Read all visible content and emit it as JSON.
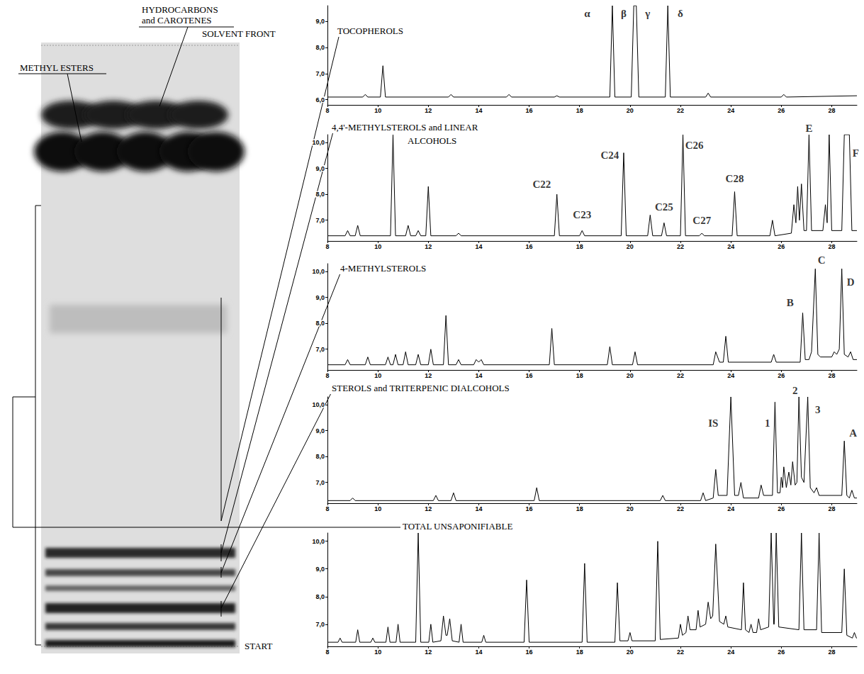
{
  "plate": {
    "methyl_esters": "METHYL ESTERS",
    "hydrocarbons": "HYDROCARBONS and CAROTENES",
    "solvent_front": "SOLVENT FRONT",
    "start": "START"
  },
  "chart_data": [
    {
      "type": "line",
      "title": "TOCOPHEROLS",
      "color": "#000000",
      "grid": false,
      "x": [
        8,
        9.4,
        9.5,
        9.6,
        10.1,
        10.2,
        10.3,
        12.8,
        12.9,
        13.0,
        15.1,
        15.2,
        15.3,
        17.0,
        17.1,
        17.2,
        19.2,
        19.3,
        19.4,
        20.05,
        20.15,
        20.25,
        20.35,
        21.4,
        21.5,
        21.6,
        23.0,
        23.1,
        23.2,
        26.0,
        26.1,
        26.2,
        29
      ],
      "values": [
        6.1,
        6.1,
        6.2,
        6.1,
        6.1,
        7.3,
        6.1,
        6.1,
        6.2,
        6.1,
        6.1,
        6.2,
        6.1,
        6.1,
        6.15,
        6.1,
        6.1,
        9.6,
        6.1,
        6.1,
        9.6,
        9.6,
        6.1,
        6.1,
        9.6,
        6.1,
        6.1,
        6.25,
        6.1,
        6.1,
        6.2,
        6.1,
        6.15
      ],
      "xlim": [
        8,
        29
      ],
      "xticks": [
        8,
        10,
        12,
        14,
        16,
        18,
        20,
        22,
        24,
        26,
        28
      ],
      "ylim": [
        5.8,
        9.6
      ],
      "yticks": [
        {
          "value": 6,
          "label": "6,0"
        },
        {
          "value": 7,
          "label": "7,0"
        },
        {
          "value": 8,
          "label": "8,0"
        },
        {
          "value": 9,
          "label": "9,0"
        }
      ],
      "annotations": [
        {
          "text": "α",
          "x": 18.3,
          "y": 9.3
        },
        {
          "text": "β",
          "x": 19.75,
          "y": 9.3
        },
        {
          "text": "γ",
          "x": 20.7,
          "y": 9.3
        },
        {
          "text": "δ",
          "x": 22.0,
          "y": 9.3
        }
      ]
    },
    {
      "type": "line",
      "title": "4,4'-METHYLSTEROLS and LINEAR ALCOHOLS",
      "color": "#000000",
      "grid": false,
      "x": [
        8,
        8.7,
        8.8,
        8.9,
        9.1,
        9.2,
        9.3,
        10.5,
        10.6,
        10.7,
        11.1,
        11.2,
        11.3,
        11.5,
        11.6,
        11.7,
        11.9,
        12.0,
        12.1,
        13.1,
        13.2,
        13.3,
        17.0,
        17.1,
        17.2,
        18.0,
        18.1,
        18.2,
        19.65,
        19.75,
        19.85,
        20.7,
        20.8,
        20.9,
        21.25,
        21.35,
        21.45,
        22.0,
        22.1,
        22.2,
        22.75,
        22.85,
        22.95,
        24.05,
        24.15,
        24.25,
        25.55,
        25.65,
        25.75,
        26.4,
        26.5,
        26.58,
        26.65,
        26.72,
        26.8,
        26.9,
        27.0,
        27.1,
        27.2,
        27.65,
        27.75,
        27.82,
        27.9,
        28.0,
        28.4,
        28.5,
        28.7,
        28.8,
        29
      ],
      "values": [
        6.4,
        6.4,
        6.6,
        6.4,
        6.4,
        6.8,
        6.4,
        6.4,
        10.3,
        6.4,
        6.4,
        6.8,
        6.4,
        6.4,
        6.6,
        6.4,
        6.4,
        8.3,
        6.4,
        6.4,
        6.5,
        6.4,
        6.4,
        8.0,
        6.4,
        6.4,
        6.6,
        6.4,
        6.4,
        9.6,
        6.4,
        6.4,
        7.2,
        6.4,
        6.4,
        6.9,
        6.4,
        6.4,
        10.3,
        6.4,
        6.4,
        6.5,
        6.4,
        6.4,
        8.1,
        6.4,
        6.4,
        7.0,
        6.4,
        6.5,
        7.6,
        6.9,
        8.3,
        7.0,
        8.4,
        6.6,
        6.6,
        10.3,
        6.6,
        6.6,
        7.6,
        6.9,
        10.3,
        6.6,
        6.6,
        10.3,
        10.3,
        6.6,
        6.6
      ],
      "xlim": [
        8,
        29
      ],
      "xticks": [
        8,
        10,
        12,
        14,
        16,
        18,
        20,
        22,
        24,
        26,
        28
      ],
      "ylim": [
        6.2,
        10.3
      ],
      "yticks": [
        {
          "value": 7,
          "label": "7,0"
        },
        {
          "value": 8,
          "label": "8,0"
        },
        {
          "value": 9,
          "label": "9,0"
        },
        {
          "value": 10,
          "label": "10,0"
        }
      ],
      "annotations": [
        {
          "text": "C22",
          "x": 16.5,
          "y": 8.4
        },
        {
          "text": "C23",
          "x": 18.1,
          "y": 7.2
        },
        {
          "text": "C24",
          "x": 19.2,
          "y": 9.5
        },
        {
          "text": "C25",
          "x": 21.35,
          "y": 7.5
        },
        {
          "text": "C26",
          "x": 22.55,
          "y": 9.9
        },
        {
          "text": "C27",
          "x": 22.85,
          "y": 7.0
        },
        {
          "text": "C28",
          "x": 24.15,
          "y": 8.6
        },
        {
          "text": "E",
          "x": 27.1,
          "y": 10.55
        },
        {
          "text": "F",
          "x": 28.95,
          "y": 9.6
        }
      ]
    },
    {
      "type": "line",
      "title": "4-METHYLSTEROLS",
      "color": "#000000",
      "grid": false,
      "x": [
        8,
        8.7,
        8.8,
        8.9,
        9.5,
        9.6,
        9.7,
        10.3,
        10.4,
        10.5,
        10.6,
        10.7,
        10.8,
        11.0,
        11.1,
        11.2,
        11.5,
        11.6,
        11.7,
        12.0,
        12.1,
        12.2,
        12.6,
        12.7,
        12.8,
        13.1,
        13.2,
        13.3,
        13.8,
        13.9,
        14.0,
        14.1,
        14.2,
        16.8,
        16.9,
        17.0,
        19.1,
        19.2,
        19.3,
        20.1,
        20.2,
        20.3,
        23.3,
        23.4,
        23.55,
        23.7,
        23.8,
        23.9,
        25.6,
        25.7,
        25.8,
        26.75,
        26.85,
        26.95,
        27.1,
        27.2,
        27.35,
        27.45,
        27.55,
        28.0,
        28.1,
        28.2,
        28.3,
        28.4,
        28.5,
        28.65,
        28.75,
        28.85,
        29
      ],
      "values": [
        6.4,
        6.4,
        6.6,
        6.4,
        6.4,
        6.7,
        6.4,
        6.4,
        6.7,
        6.4,
        6.4,
        6.8,
        6.4,
        6.4,
        6.9,
        6.4,
        6.4,
        6.8,
        6.4,
        6.4,
        7.0,
        6.4,
        6.4,
        8.3,
        6.4,
        6.4,
        6.6,
        6.4,
        6.4,
        6.6,
        6.5,
        6.6,
        6.4,
        6.4,
        7.8,
        6.4,
        6.4,
        7.1,
        6.4,
        6.4,
        6.9,
        6.4,
        6.4,
        6.9,
        6.5,
        6.5,
        7.5,
        6.5,
        6.5,
        6.8,
        6.5,
        6.5,
        8.4,
        6.6,
        6.6,
        6.9,
        10.1,
        6.8,
        6.7,
        6.7,
        6.9,
        6.8,
        7.0,
        10.1,
        6.8,
        6.7,
        6.9,
        6.6,
        6.6
      ],
      "xlim": [
        8,
        29
      ],
      "xticks": [
        8,
        10,
        12,
        14,
        16,
        18,
        20,
        22,
        24,
        26,
        28
      ],
      "ylim": [
        6.2,
        10.3
      ],
      "yticks": [
        {
          "value": 7,
          "label": "7,0"
        },
        {
          "value": 8,
          "label": "8,0"
        },
        {
          "value": 9,
          "label": "9,0"
        },
        {
          "value": 10,
          "label": "10,0"
        }
      ],
      "annotations": [
        {
          "text": "B",
          "x": 26.35,
          "y": 8.8
        },
        {
          "text": "C",
          "x": 27.6,
          "y": 10.45
        },
        {
          "text": "D",
          "x": 28.75,
          "y": 9.6
        }
      ]
    },
    {
      "type": "line",
      "title": "STEROLS and TRITERPENIC DIALCOHOLS",
      "color": "#000000",
      "grid": false,
      "x": [
        8,
        8.9,
        9.0,
        9.1,
        12.2,
        12.3,
        12.4,
        12.9,
        13.0,
        13.1,
        16.2,
        16.3,
        16.4,
        21.2,
        21.3,
        21.4,
        22.8,
        22.9,
        23.0,
        23.3,
        23.4,
        23.5,
        23.85,
        24.0,
        24.15,
        24.3,
        24.4,
        24.5,
        25.1,
        25.2,
        25.3,
        25.65,
        25.75,
        25.85,
        25.95,
        26.0,
        26.05,
        26.1,
        26.2,
        26.3,
        26.38,
        26.45,
        26.55,
        26.62,
        26.7,
        26.8,
        26.9,
        27.05,
        27.15,
        27.3,
        27.4,
        27.5,
        28.4,
        28.5,
        28.6,
        28.7,
        28.8,
        28.9,
        29
      ],
      "values": [
        6.3,
        6.3,
        6.4,
        6.3,
        6.3,
        6.5,
        6.3,
        6.3,
        6.6,
        6.3,
        6.3,
        6.8,
        6.3,
        6.3,
        6.5,
        6.3,
        6.3,
        6.6,
        6.3,
        6.4,
        7.5,
        6.5,
        6.5,
        10.3,
        6.5,
        6.5,
        7.0,
        6.4,
        6.4,
        6.9,
        6.5,
        6.5,
        10.1,
        6.6,
        6.6,
        7.2,
        6.8,
        7.6,
        6.8,
        7.4,
        6.9,
        7.8,
        6.9,
        7.0,
        10.3,
        7.2,
        7.0,
        10.3,
        6.8,
        6.6,
        6.8,
        6.5,
        6.5,
        8.6,
        6.5,
        6.4,
        6.7,
        6.4,
        6.4
      ],
      "xlim": [
        8,
        29
      ],
      "xticks": [
        8,
        10,
        12,
        14,
        16,
        18,
        20,
        22,
        24,
        26,
        28
      ],
      "ylim": [
        6.2,
        10.3
      ],
      "yticks": [
        {
          "value": 7,
          "label": "7,0"
        },
        {
          "value": 8,
          "label": "8,0"
        },
        {
          "value": 9,
          "label": "9,0"
        },
        {
          "value": 10,
          "label": "10,0"
        }
      ],
      "annotations": [
        {
          "text": "IS",
          "x": 23.3,
          "y": 9.3
        },
        {
          "text": "1",
          "x": 25.45,
          "y": 9.3
        },
        {
          "text": "2",
          "x": 26.55,
          "y": 10.55
        },
        {
          "text": "3",
          "x": 27.45,
          "y": 9.8
        },
        {
          "text": "A",
          "x": 28.85,
          "y": 8.9
        }
      ]
    },
    {
      "type": "line",
      "title": "TOTAL UNSAPONIFIABLE",
      "color": "#000000",
      "grid": false,
      "x": [
        8,
        8.42,
        8.5,
        8.58,
        9.12,
        9.2,
        9.28,
        9.72,
        9.8,
        9.88,
        10.32,
        10.4,
        10.48,
        10.72,
        10.8,
        10.88,
        11.5,
        11.6,
        11.7,
        12.02,
        12.1,
        12.18,
        12.5,
        12.6,
        12.7,
        12.75,
        12.85,
        12.95,
        13.22,
        13.3,
        13.38,
        14.12,
        14.2,
        14.28,
        15.8,
        15.9,
        16.0,
        18.1,
        18.2,
        18.3,
        19.4,
        19.5,
        19.6,
        19.92,
        20.0,
        20.08,
        21.0,
        21.1,
        21.2,
        21.92,
        22.0,
        22.08,
        22.22,
        22.3,
        22.38,
        22.62,
        22.7,
        22.78,
        23.0,
        23.1,
        23.2,
        23.28,
        23.4,
        23.55,
        23.72,
        23.8,
        23.88,
        24.42,
        24.5,
        24.58,
        24.72,
        24.8,
        24.88,
        25.02,
        25.1,
        25.18,
        25.5,
        25.6,
        25.7,
        25.72,
        25.8,
        25.9,
        26.7,
        26.8,
        26.9,
        27.4,
        27.5,
        27.6,
        28.4,
        28.5,
        28.6,
        28.82,
        28.9,
        28.98,
        29
      ],
      "values": [
        6.35,
        6.35,
        6.5,
        6.35,
        6.35,
        6.8,
        6.35,
        6.35,
        6.5,
        6.35,
        6.35,
        6.9,
        6.35,
        6.35,
        7.0,
        6.35,
        6.35,
        10.3,
        6.35,
        6.35,
        7.0,
        6.35,
        6.4,
        7.3,
        6.6,
        6.6,
        7.2,
        6.4,
        6.35,
        7.0,
        6.35,
        6.35,
        6.6,
        6.35,
        6.35,
        8.6,
        6.35,
        6.35,
        9.2,
        6.35,
        6.35,
        8.5,
        6.4,
        6.4,
        6.7,
        6.4,
        6.4,
        10.0,
        6.45,
        6.5,
        7.0,
        6.6,
        6.7,
        7.3,
        6.8,
        6.8,
        7.5,
        6.9,
        7.0,
        7.8,
        7.2,
        7.3,
        9.9,
        7.1,
        7.0,
        7.3,
        6.9,
        6.8,
        8.5,
        6.8,
        6.7,
        7.0,
        6.7,
        6.7,
        7.2,
        6.8,
        6.9,
        10.3,
        7.0,
        7.0,
        10.3,
        6.9,
        6.8,
        10.3,
        6.8,
        6.8,
        10.3,
        6.7,
        6.7,
        9.0,
        6.6,
        6.5,
        6.7,
        6.5,
        6.5
      ],
      "xlim": [
        8,
        29
      ],
      "xticks": [
        8,
        10,
        12,
        14,
        16,
        18,
        20,
        22,
        24,
        26,
        28
      ],
      "ylim": [
        6.2,
        10.3
      ],
      "yticks": [
        {
          "value": 7,
          "label": "7,0"
        },
        {
          "value": 8,
          "label": "8,0"
        },
        {
          "value": 9,
          "label": "9,0"
        },
        {
          "value": 10,
          "label": "10,0"
        }
      ]
    }
  ]
}
